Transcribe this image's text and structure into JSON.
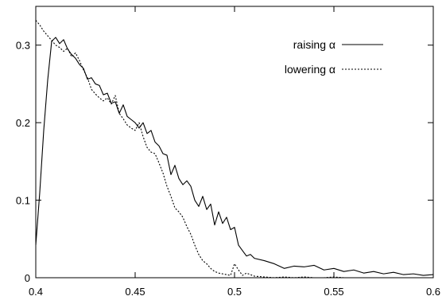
{
  "chart_data": {
    "type": "line",
    "title": "",
    "xlabel": "",
    "ylabel": "",
    "xlim": [
      0.4,
      0.6
    ],
    "ylim": [
      0,
      0.35
    ],
    "x_ticks": [
      0.4,
      0.45,
      0.5,
      0.55,
      0.6
    ],
    "x_tick_labels": [
      "0.4",
      "0.45",
      "0.5",
      "0.55",
      "0.6"
    ],
    "y_ticks": [
      0,
      0.1,
      0.2,
      0.3
    ],
    "y_tick_labels": [
      "0",
      "0.1",
      "0.2",
      "0.3"
    ],
    "grid": false,
    "legend_position": "top-right",
    "series": [
      {
        "name": "raising α",
        "style": "solid",
        "color": "#000000",
        "x": [
          0.4,
          0.402,
          0.404,
          0.406,
          0.408,
          0.41,
          0.412,
          0.414,
          0.416,
          0.418,
          0.42,
          0.422,
          0.424,
          0.426,
          0.428,
          0.43,
          0.432,
          0.434,
          0.436,
          0.438,
          0.44,
          0.442,
          0.444,
          0.446,
          0.448,
          0.45,
          0.452,
          0.454,
          0.456,
          0.458,
          0.46,
          0.462,
          0.464,
          0.466,
          0.468,
          0.47,
          0.472,
          0.474,
          0.476,
          0.478,
          0.48,
          0.482,
          0.484,
          0.486,
          0.488,
          0.49,
          0.492,
          0.494,
          0.496,
          0.498,
          0.5,
          0.502,
          0.504,
          0.506,
          0.508,
          0.51,
          0.515,
          0.52,
          0.525,
          0.53,
          0.535,
          0.54,
          0.545,
          0.55,
          0.555,
          0.56,
          0.565,
          0.57,
          0.575,
          0.58,
          0.585,
          0.59,
          0.595,
          0.6
        ],
        "y": [
          0.042,
          0.11,
          0.19,
          0.255,
          0.305,
          0.31,
          0.302,
          0.307,
          0.295,
          0.288,
          0.283,
          0.275,
          0.27,
          0.256,
          0.258,
          0.25,
          0.248,
          0.236,
          0.238,
          0.225,
          0.227,
          0.212,
          0.223,
          0.208,
          0.204,
          0.2,
          0.193,
          0.2,
          0.186,
          0.19,
          0.175,
          0.17,
          0.16,
          0.158,
          0.133,
          0.145,
          0.128,
          0.12,
          0.125,
          0.118,
          0.1,
          0.092,
          0.105,
          0.088,
          0.095,
          0.068,
          0.085,
          0.07,
          0.078,
          0.062,
          0.065,
          0.042,
          0.035,
          0.028,
          0.03,
          0.025,
          0.022,
          0.018,
          0.012,
          0.015,
          0.014,
          0.016,
          0.01,
          0.012,
          0.008,
          0.01,
          0.006,
          0.008,
          0.005,
          0.007,
          0.004,
          0.005,
          0.003,
          0.004
        ]
      },
      {
        "name": "lowering α",
        "style": "dotted",
        "color": "#000000",
        "x": [
          0.4,
          0.402,
          0.404,
          0.406,
          0.408,
          0.41,
          0.412,
          0.414,
          0.416,
          0.418,
          0.42,
          0.422,
          0.424,
          0.426,
          0.428,
          0.43,
          0.432,
          0.434,
          0.436,
          0.438,
          0.44,
          0.442,
          0.444,
          0.446,
          0.448,
          0.45,
          0.452,
          0.454,
          0.456,
          0.458,
          0.46,
          0.462,
          0.464,
          0.466,
          0.468,
          0.47,
          0.472,
          0.474,
          0.476,
          0.478,
          0.48,
          0.482,
          0.484,
          0.486,
          0.488,
          0.49,
          0.492,
          0.494,
          0.496,
          0.498,
          0.5,
          0.502,
          0.504,
          0.506,
          0.508,
          0.51,
          0.515,
          0.52,
          0.525,
          0.53,
          0.535,
          0.54,
          0.545,
          0.55,
          0.555,
          0.56,
          0.565,
          0.57,
          0.575,
          0.58,
          0.585,
          0.59,
          0.595,
          0.6
        ],
        "y": [
          0.332,
          0.326,
          0.318,
          0.312,
          0.306,
          0.3,
          0.297,
          0.292,
          0.296,
          0.285,
          0.29,
          0.28,
          0.268,
          0.258,
          0.243,
          0.237,
          0.232,
          0.228,
          0.232,
          0.224,
          0.235,
          0.212,
          0.205,
          0.197,
          0.193,
          0.19,
          0.2,
          0.182,
          0.168,
          0.162,
          0.16,
          0.148,
          0.135,
          0.118,
          0.105,
          0.09,
          0.085,
          0.078,
          0.066,
          0.056,
          0.042,
          0.03,
          0.022,
          0.018,
          0.012,
          0.008,
          0.006,
          0.005,
          0.004,
          0.003,
          0.018,
          0.01,
          0.003,
          0.006,
          0.004,
          0.002,
          0.001,
          0.0,
          0.001,
          0.0,
          0.001,
          0.0,
          0.0,
          0.001,
          0.0,
          0.0,
          0.0,
          0.0,
          0.0,
          0.0,
          0.0,
          0.0,
          0.0,
          0.0
        ]
      }
    ]
  },
  "colors": {
    "axis": "#000000",
    "background": "#ffffff"
  }
}
